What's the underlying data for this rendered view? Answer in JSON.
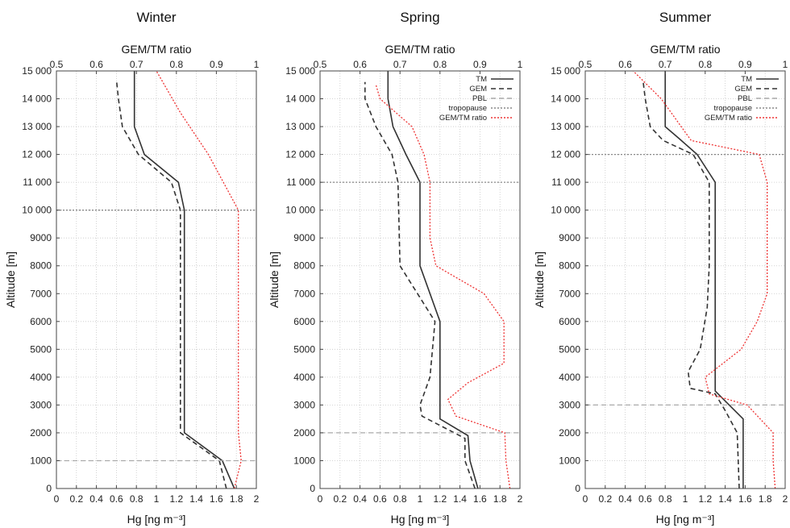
{
  "chart_data": [
    {
      "type": "line",
      "title": "Winter",
      "xlabel": "Hg [ng m⁻³]",
      "ylabel": "Altitude [m]",
      "x2label": "GEM/TM ratio",
      "xlim": [
        0,
        2
      ],
      "ylim": [
        0,
        15000
      ],
      "x2lim": [
        0.5,
        1
      ],
      "xticks": [
        "0",
        "0.2",
        "0.4",
        "0.6",
        "0.8",
        "1",
        "1.2",
        "1.4",
        "1.6",
        "1.8",
        "2"
      ],
      "x2ticks": [
        "0.5",
        "0.6",
        "0.7",
        "0.8",
        "0.9",
        "1"
      ],
      "yticks": [
        "0",
        "1000",
        "2000",
        "3000",
        "4000",
        "5000",
        "6000",
        "7000",
        "8000",
        "9000",
        "10 000",
        "11 000",
        "12 000",
        "13 000",
        "14 000",
        "15 000"
      ],
      "grid": true,
      "legend_position": "none",
      "series": [
        {
          "name": "TM",
          "color": "#333333",
          "style": "solid",
          "axis": "x",
          "points": [
            [
              1.78,
              0
            ],
            [
              1.66,
              1000
            ],
            [
              1.28,
              2000
            ],
            [
              1.28,
              10000
            ],
            [
              1.22,
              11000
            ],
            [
              0.88,
              12000
            ],
            [
              0.78,
              13000
            ],
            [
              0.78,
              14000
            ],
            [
              0.78,
              15000
            ]
          ]
        },
        {
          "name": "GEM",
          "color": "#333333",
          "style": "dashed",
          "axis": "x",
          "points": [
            [
              1.7,
              0
            ],
            [
              1.63,
              1000
            ],
            [
              1.24,
              2000
            ],
            [
              1.24,
              10000
            ],
            [
              1.15,
              11000
            ],
            [
              0.82,
              12000
            ],
            [
              0.66,
              13000
            ],
            [
              0.62,
              14000
            ],
            [
              0.6,
              14700
            ]
          ]
        },
        {
          "name": "PBL",
          "color": "#aaaaaa",
          "style": "dashed",
          "axis": "x",
          "points": [
            [
              0,
              1000
            ],
            [
              2,
              1000
            ]
          ]
        },
        {
          "name": "tropopause",
          "color": "#888888",
          "style": "dotted",
          "axis": "x",
          "points": [
            [
              0,
              10000
            ],
            [
              2,
              10000
            ]
          ]
        },
        {
          "name": "GEM/TM ratio",
          "color": "#ee3333",
          "style": "dotted",
          "axis": "x2",
          "points": [
            [
              0.945,
              0
            ],
            [
              0.962,
              1000
            ],
            [
              0.955,
              2000
            ],
            [
              0.955,
              10000
            ],
            [
              0.88,
              12000
            ],
            [
              0.81,
              13500
            ],
            [
              0.75,
              15000
            ]
          ]
        }
      ]
    },
    {
      "type": "line",
      "title": "Spring",
      "xlabel": "Hg [ng m⁻³]",
      "ylabel": "Altitude [m]",
      "x2label": "GEM/TM ratio",
      "xlim": [
        0,
        2
      ],
      "ylim": [
        0,
        15000
      ],
      "x2lim": [
        0.5,
        1
      ],
      "xticks": [
        "0",
        "0.2",
        "0.4",
        "0.6",
        "0.8",
        "1",
        "1.2",
        "1.4",
        "1.6",
        "1.8",
        "2"
      ],
      "x2ticks": [
        "0.5",
        "0.6",
        "0.7",
        "0.8",
        "0.9",
        "1"
      ],
      "yticks": [
        "0",
        "1000",
        "2000",
        "3000",
        "4000",
        "5000",
        "6000",
        "7000",
        "8000",
        "9000",
        "10 000",
        "11 000",
        "12 000",
        "13 000",
        "14 000",
        "15 000"
      ],
      "grid": true,
      "legend_position": "top-right",
      "series": [
        {
          "name": "TM",
          "color": "#333333",
          "style": "solid",
          "axis": "x",
          "points": [
            [
              1.58,
              0
            ],
            [
              1.5,
              1000
            ],
            [
              1.48,
              1900
            ],
            [
              1.2,
              2500
            ],
            [
              1.2,
              6000
            ],
            [
              1.0,
              8000
            ],
            [
              1.0,
              11000
            ],
            [
              0.86,
              12000
            ],
            [
              0.73,
              13000
            ],
            [
              0.68,
              14000
            ],
            [
              0.68,
              15000
            ]
          ]
        },
        {
          "name": "GEM",
          "color": "#333333",
          "style": "dashed",
          "axis": "x",
          "points": [
            [
              1.55,
              0
            ],
            [
              1.45,
              1000
            ],
            [
              1.45,
              1800
            ],
            [
              1.02,
              2600
            ],
            [
              1.0,
              3000
            ],
            [
              1.1,
              4000
            ],
            [
              1.15,
              6000
            ],
            [
              0.8,
              8000
            ],
            [
              0.78,
              11000
            ],
            [
              0.72,
              12000
            ],
            [
              0.56,
              13000
            ],
            [
              0.45,
              14000
            ],
            [
              0.45,
              14600
            ]
          ]
        },
        {
          "name": "PBL",
          "color": "#aaaaaa",
          "style": "dashed",
          "axis": "x",
          "points": [
            [
              0,
              2000
            ],
            [
              2,
              2000
            ]
          ]
        },
        {
          "name": "tropopause",
          "color": "#888888",
          "style": "dotted",
          "axis": "x",
          "points": [
            [
              0,
              11000
            ],
            [
              2,
              11000
            ]
          ]
        },
        {
          "name": "GEM/TM ratio",
          "color": "#ee3333",
          "style": "dotted",
          "axis": "x2",
          "points": [
            [
              0.975,
              0
            ],
            [
              0.965,
              1000
            ],
            [
              0.962,
              2000
            ],
            [
              0.84,
              2600
            ],
            [
              0.82,
              3200
            ],
            [
              0.87,
              3800
            ],
            [
              0.96,
              4500
            ],
            [
              0.96,
              6000
            ],
            [
              0.91,
              7000
            ],
            [
              0.79,
              8000
            ],
            [
              0.775,
              9000
            ],
            [
              0.775,
              11000
            ],
            [
              0.76,
              12000
            ],
            [
              0.73,
              13000
            ],
            [
              0.65,
              14000
            ],
            [
              0.64,
              14500
            ]
          ]
        }
      ]
    },
    {
      "type": "line",
      "title": "Summer",
      "xlabel": "Hg [ng m⁻³]",
      "ylabel": "Altitude [m]",
      "x2label": "GEM/TM ratio",
      "xlim": [
        0,
        2
      ],
      "ylim": [
        0,
        15000
      ],
      "x2lim": [
        0.5,
        1
      ],
      "xticks": [
        "0",
        "0.2",
        "0.4",
        "0.6",
        "0.8",
        "1",
        "1.2",
        "1.4",
        "1.6",
        "1.8",
        "2"
      ],
      "x2ticks": [
        "0.5",
        "0.6",
        "0.7",
        "0.8",
        "0.9",
        "1"
      ],
      "yticks": [
        "0",
        "1000",
        "2000",
        "3000",
        "4000",
        "5000",
        "6000",
        "7000",
        "8000",
        "9000",
        "10 000",
        "11 000",
        "12 000",
        "13 000",
        "14 000",
        "15 000"
      ],
      "grid": true,
      "legend_position": "top-right",
      "series": [
        {
          "name": "TM",
          "color": "#333333",
          "style": "solid",
          "axis": "x",
          "points": [
            [
              1.58,
              0
            ],
            [
              1.58,
              2500
            ],
            [
              1.3,
              3500
            ],
            [
              1.3,
              6500
            ],
            [
              1.3,
              11000
            ],
            [
              1.12,
              12000
            ],
            [
              0.93,
              12600
            ],
            [
              0.8,
              13000
            ],
            [
              0.8,
              14000
            ],
            [
              0.8,
              15000
            ]
          ]
        },
        {
          "name": "GEM",
          "color": "#333333",
          "style": "dashed",
          "axis": "x",
          "points": [
            [
              1.54,
              0
            ],
            [
              1.52,
              2000
            ],
            [
              1.4,
              2800
            ],
            [
              1.3,
              3400
            ],
            [
              1.05,
              3600
            ],
            [
              1.03,
              4200
            ],
            [
              1.15,
              5000
            ],
            [
              1.22,
              6500
            ],
            [
              1.24,
              8000
            ],
            [
              1.24,
              11000
            ],
            [
              1.08,
              12000
            ],
            [
              0.78,
              12500
            ],
            [
              0.65,
              13000
            ],
            [
              0.6,
              14000
            ],
            [
              0.58,
              14600
            ]
          ]
        },
        {
          "name": "PBL",
          "color": "#aaaaaa",
          "style": "dashed",
          "axis": "x",
          "points": [
            [
              0,
              3000
            ],
            [
              2,
              3000
            ]
          ]
        },
        {
          "name": "tropopause",
          "color": "#888888",
          "style": "dotted",
          "axis": "x",
          "points": [
            [
              0,
              12000
            ],
            [
              2,
              12000
            ]
          ]
        },
        {
          "name": "GEM/TM ratio",
          "color": "#ee3333",
          "style": "dotted",
          "axis": "x2",
          "points": [
            [
              0.975,
              0
            ],
            [
              0.97,
              1000
            ],
            [
              0.97,
              2000
            ],
            [
              0.905,
              3000
            ],
            [
              0.81,
              3400
            ],
            [
              0.8,
              4000
            ],
            [
              0.89,
              5000
            ],
            [
              0.93,
              6000
            ],
            [
              0.955,
              7000
            ],
            [
              0.955,
              11000
            ],
            [
              0.935,
              12000
            ],
            [
              0.765,
              12500
            ],
            [
              0.69,
              14000
            ],
            [
              0.62,
              15000
            ]
          ]
        }
      ]
    }
  ]
}
